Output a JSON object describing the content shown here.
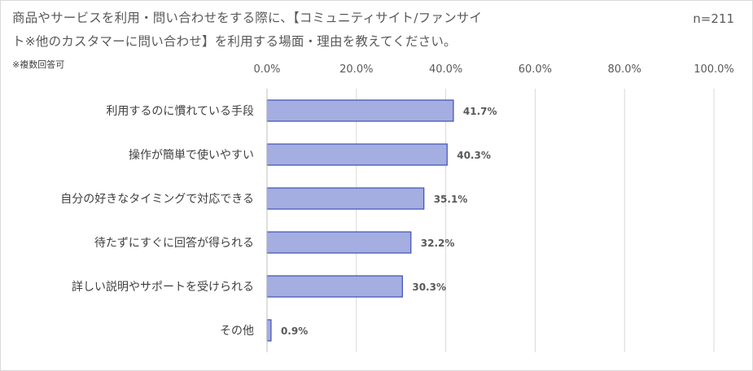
{
  "chart_data": {
    "type": "bar",
    "orientation": "horizontal",
    "title_lines": [
      "商品やサービスを利用・問い合わせをする際に、【コミュニティサイト/ファンサイ",
      "ト※他のカスタマーに問い合わせ】を利用する場面・理由を教えてください。"
    ],
    "note": "※複数回答可",
    "sample_size": "n=211",
    "categories": [
      "利用するのに慣れている手段",
      "操作が簡単で使いやすい",
      "自分の好きなタイミングで対応できる",
      "待たずにすぐに回答が得られる",
      "詳しい説明やサポートを受けられる",
      "その他"
    ],
    "values": [
      41.7,
      40.3,
      35.1,
      32.2,
      30.3,
      0.9
    ],
    "value_labels": [
      "41.7%",
      "40.3%",
      "35.1%",
      "32.2%",
      "30.3%",
      "0.9%"
    ],
    "xlim": [
      0,
      100
    ],
    "x_ticks": [
      0,
      20,
      40,
      60,
      80,
      100
    ],
    "x_tick_labels": [
      "0.0%",
      "20.0%",
      "40.0%",
      "60.0%",
      "80.0%",
      "100.0%"
    ],
    "axis_position": "top",
    "grid": true,
    "legend": "none",
    "colors": {
      "bar_fill": "#A4AEE0",
      "bar_stroke": "#3F4FB5",
      "grid": "#d9d9d9",
      "text": "#595959"
    }
  }
}
